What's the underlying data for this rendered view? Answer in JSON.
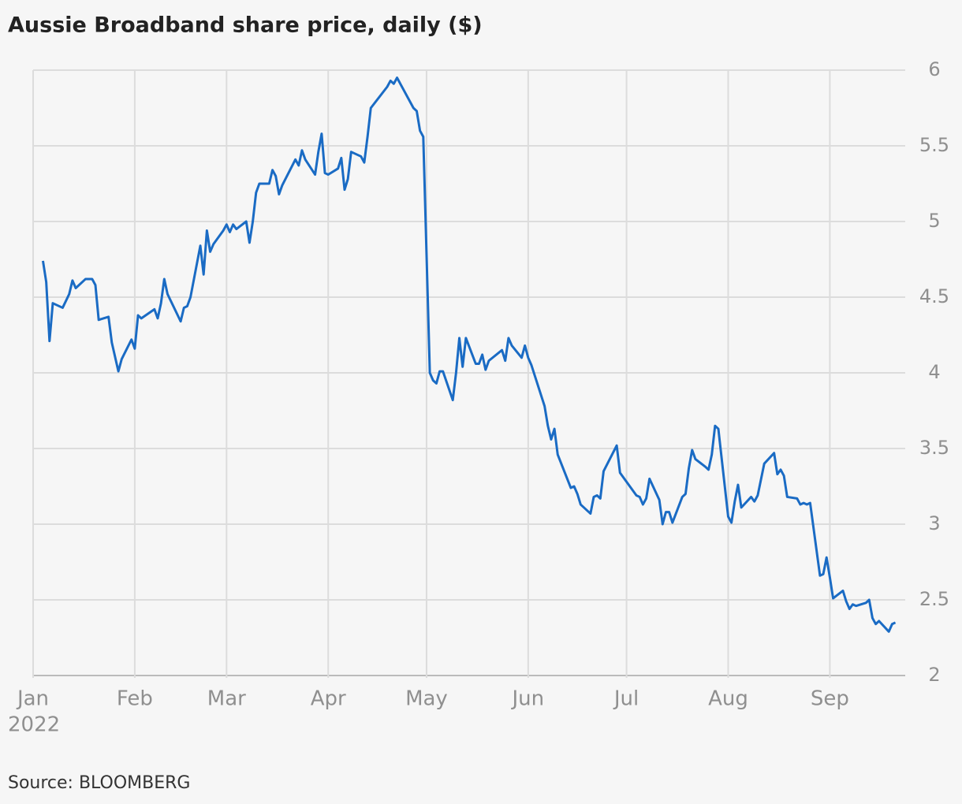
{
  "chart_data": {
    "type": "line",
    "title": "Aussie Broadband share price, daily ($)",
    "source": "Source: BLOOMBERG",
    "year_label": "2022",
    "xlim": [
      "2022-01-01",
      "2022-09-24"
    ],
    "xticks": [
      {
        "value": "2022-01-01",
        "label": "Jan"
      },
      {
        "value": "2022-02-01",
        "label": "Feb"
      },
      {
        "value": "2022-03-01",
        "label": "Mar"
      },
      {
        "value": "2022-04-01",
        "label": "Apr"
      },
      {
        "value": "2022-05-01",
        "label": "May"
      },
      {
        "value": "2022-06-01",
        "label": "Jun"
      },
      {
        "value": "2022-07-01",
        "label": "Jul"
      },
      {
        "value": "2022-08-01",
        "label": "Aug"
      },
      {
        "value": "2022-09-01",
        "label": "Sep"
      }
    ],
    "ylim": [
      2,
      6
    ],
    "yticks": [
      2,
      2.5,
      3,
      3.5,
      4,
      4.5,
      5,
      5.5,
      6
    ],
    "grid": true,
    "color": "#1a6bc4",
    "x": [
      "2022-01-04",
      "2022-01-05",
      "2022-01-06",
      "2022-01-07",
      "2022-01-10",
      "2022-01-12",
      "2022-01-13",
      "2022-01-14",
      "2022-01-17",
      "2022-01-19",
      "2022-01-20",
      "2022-01-21",
      "2022-01-24",
      "2022-01-25",
      "2022-01-27",
      "2022-01-28",
      "2022-01-31",
      "2022-02-01",
      "2022-02-02",
      "2022-02-03",
      "2022-02-07",
      "2022-02-08",
      "2022-02-09",
      "2022-02-10",
      "2022-02-11",
      "2022-02-15",
      "2022-02-16",
      "2022-02-17",
      "2022-02-18",
      "2022-02-21",
      "2022-02-22",
      "2022-02-23",
      "2022-02-24",
      "2022-02-25",
      "2022-02-28",
      "2022-03-01",
      "2022-03-02",
      "2022-03-03",
      "2022-03-04",
      "2022-03-07",
      "2022-03-08",
      "2022-03-09",
      "2022-03-10",
      "2022-03-11",
      "2022-03-14",
      "2022-03-15",
      "2022-03-16",
      "2022-03-17",
      "2022-03-18",
      "2022-03-22",
      "2022-03-23",
      "2022-03-24",
      "2022-03-25",
      "2022-03-28",
      "2022-03-29",
      "2022-03-30",
      "2022-03-31",
      "2022-04-01",
      "2022-04-04",
      "2022-04-05",
      "2022-04-06",
      "2022-04-07",
      "2022-04-08",
      "2022-04-11",
      "2022-04-12",
      "2022-04-13",
      "2022-04-14",
      "2022-04-19",
      "2022-04-20",
      "2022-04-21",
      "2022-04-22",
      "2022-04-27",
      "2022-04-28",
      "2022-04-29",
      "2022-04-30",
      "2022-05-02",
      "2022-05-03",
      "2022-05-04",
      "2022-05-05",
      "2022-05-06",
      "2022-05-09",
      "2022-05-10",
      "2022-05-11",
      "2022-05-12",
      "2022-05-13",
      "2022-05-16",
      "2022-05-17",
      "2022-05-18",
      "2022-05-19",
      "2022-05-20",
      "2022-05-24",
      "2022-05-25",
      "2022-05-26",
      "2022-05-27",
      "2022-05-30",
      "2022-05-31",
      "2022-06-01",
      "2022-06-02",
      "2022-06-06",
      "2022-06-07",
      "2022-06-08",
      "2022-06-09",
      "2022-06-10",
      "2022-06-14",
      "2022-06-15",
      "2022-06-16",
      "2022-06-17",
      "2022-06-20",
      "2022-06-21",
      "2022-06-22",
      "2022-06-23",
      "2022-06-24",
      "2022-06-28",
      "2022-06-29",
      "2022-07-04",
      "2022-07-05",
      "2022-07-06",
      "2022-07-07",
      "2022-07-08",
      "2022-07-11",
      "2022-07-12",
      "2022-07-13",
      "2022-07-14",
      "2022-07-15",
      "2022-07-18",
      "2022-07-19",
      "2022-07-20",
      "2022-07-21",
      "2022-07-22",
      "2022-07-25",
      "2022-07-26",
      "2022-07-27",
      "2022-07-28",
      "2022-07-29",
      "2022-08-01",
      "2022-08-02",
      "2022-08-03",
      "2022-08-04",
      "2022-08-05",
      "2022-08-08",
      "2022-08-09",
      "2022-08-10",
      "2022-08-12",
      "2022-08-15",
      "2022-08-16",
      "2022-08-17",
      "2022-08-18",
      "2022-08-19",
      "2022-08-22",
      "2022-08-23",
      "2022-08-24",
      "2022-08-25",
      "2022-08-26",
      "2022-08-29",
      "2022-08-30",
      "2022-08-31",
      "2022-09-01",
      "2022-09-02",
      "2022-09-05",
      "2022-09-06",
      "2022-09-07",
      "2022-09-08",
      "2022-09-09",
      "2022-09-12",
      "2022-09-13",
      "2022-09-14",
      "2022-09-15",
      "2022-09-16",
      "2022-09-19",
      "2022-09-20",
      "2022-09-21"
    ],
    "values": [
      4.74,
      4.6,
      4.21,
      4.46,
      4.43,
      4.52,
      4.61,
      4.56,
      4.62,
      4.62,
      4.58,
      4.35,
      4.37,
      4.2,
      4.01,
      4.09,
      4.22,
      4.16,
      4.38,
      4.36,
      4.42,
      4.36,
      4.46,
      4.62,
      4.52,
      4.34,
      4.43,
      4.44,
      4.5,
      4.84,
      4.65,
      4.94,
      4.8,
      4.85,
      4.94,
      4.98,
      4.93,
      4.98,
      4.95,
      5.0,
      4.86,
      5.0,
      5.19,
      5.25,
      5.25,
      5.34,
      5.3,
      5.18,
      5.24,
      5.41,
      5.37,
      5.47,
      5.41,
      5.31,
      5.46,
      5.58,
      5.32,
      5.31,
      5.35,
      5.42,
      5.21,
      5.28,
      5.46,
      5.43,
      5.39,
      5.56,
      5.75,
      5.89,
      5.93,
      5.91,
      5.95,
      5.75,
      5.73,
      5.6,
      5.56,
      4.0,
      3.95,
      3.93,
      4.01,
      4.01,
      3.82,
      4.0,
      4.23,
      4.04,
      4.23,
      4.06,
      4.06,
      4.12,
      4.02,
      4.08,
      4.15,
      4.08,
      4.23,
      4.18,
      4.1,
      4.18,
      4.1,
      4.05,
      3.78,
      3.65,
      3.56,
      3.63,
      3.46,
      3.24,
      3.25,
      3.2,
      3.13,
      3.07,
      3.18,
      3.19,
      3.17,
      3.35,
      3.52,
      3.34,
      3.19,
      3.18,
      3.13,
      3.17,
      3.3,
      3.16,
      3.0,
      3.08,
      3.08,
      3.01,
      3.18,
      3.2,
      3.37,
      3.49,
      3.43,
      3.38,
      3.36,
      3.46,
      3.65,
      3.63,
      3.05,
      3.01,
      3.15,
      3.26,
      3.11,
      3.18,
      3.15,
      3.19,
      3.4,
      3.47,
      3.33,
      3.36,
      3.32,
      3.18,
      3.17,
      3.13,
      3.14,
      3.13,
      3.14,
      2.66,
      2.67,
      2.78,
      2.65,
      2.51,
      2.56,
      2.49,
      2.44,
      2.47,
      2.46,
      2.48,
      2.5,
      2.38,
      2.34,
      2.36,
      2.29,
      2.34,
      2.35
    ]
  }
}
